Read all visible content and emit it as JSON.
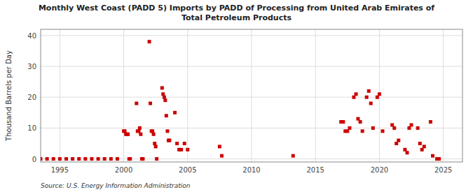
{
  "chart_data": {
    "type": "scatter",
    "title": "Monthly West Coast (PADD 5) Imports by PADD of Processing from United Arab Emirates of\nTotal Petroleum Products",
    "ylabel": "Thousand Barrels per Day",
    "source": "Source: U.S. Energy Information Administration",
    "color": "#cc0000",
    "marker": "square",
    "grid": true,
    "xlim": [
      1993.5,
      2026.5
    ],
    "ylim": [
      -1,
      42
    ],
    "yticks": [
      0,
      10,
      20,
      30,
      40
    ],
    "xticks": [
      1995,
      2000,
      2005,
      2010,
      2015,
      2020,
      2025
    ],
    "x": [
      1993.5,
      1994.0,
      1994.5,
      1995.0,
      1995.5,
      1996.0,
      1996.5,
      1997.0,
      1997.5,
      1998.0,
      1998.5,
      1999.0,
      1999.5,
      2000.0,
      2000.08,
      2000.17,
      2000.25,
      2000.33,
      2000.42,
      2000.5,
      2001.0,
      2001.08,
      2001.17,
      2001.25,
      2001.33,
      2001.42,
      2001.5,
      2002.0,
      2002.08,
      2002.17,
      2002.25,
      2002.33,
      2002.42,
      2002.5,
      2002.58,
      2003.0,
      2003.08,
      2003.17,
      2003.25,
      2003.33,
      2003.42,
      2003.5,
      2003.58,
      2004.0,
      2004.17,
      2004.33,
      2004.5,
      2004.75,
      2005.0,
      2007.5,
      2007.67,
      2013.25,
      2017.0,
      2017.17,
      2017.33,
      2017.5,
      2017.67,
      2018.0,
      2018.17,
      2018.33,
      2018.5,
      2018.67,
      2019.0,
      2019.17,
      2019.33,
      2019.5,
      2019.83,
      2020.0,
      2020.25,
      2021.0,
      2021.17,
      2021.33,
      2021.5,
      2022.0,
      2022.17,
      2022.33,
      2022.5,
      2023.0,
      2023.17,
      2023.33,
      2023.5,
      2024.0,
      2024.17,
      2024.5,
      2024.67
    ],
    "values": [
      0,
      0,
      0,
      0,
      0,
      0,
      0,
      0,
      0,
      0,
      0,
      0,
      0,
      9,
      9,
      8,
      8,
      8,
      0,
      0,
      18,
      9,
      9,
      10,
      8,
      0,
      0,
      38,
      18,
      9,
      9,
      8,
      5,
      4,
      0,
      23,
      21,
      20,
      19,
      14,
      9,
      6,
      6,
      15,
      5,
      3,
      3,
      5,
      3,
      4,
      1,
      1,
      12,
      12,
      9,
      9,
      10,
      20,
      21,
      13,
      12,
      9,
      20,
      22,
      18,
      10,
      20,
      21,
      9,
      11,
      10,
      5,
      6,
      3,
      2,
      10,
      11,
      10,
      5,
      3,
      4,
      12,
      1,
      0,
      0
    ]
  }
}
